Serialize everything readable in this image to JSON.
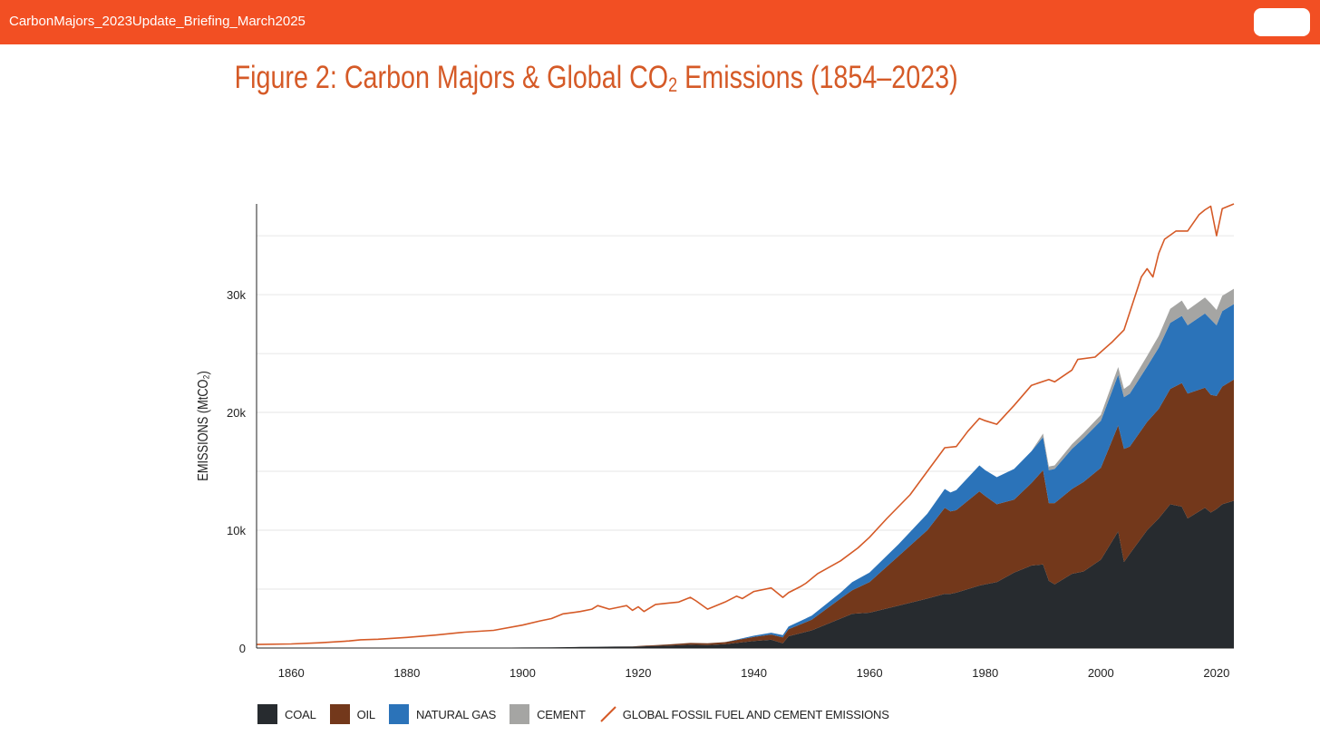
{
  "window": {
    "title": "CarbonMajors_2023Update_Briefing_March2025"
  },
  "colors": {
    "topbar": "#f24f23",
    "title": "#d55a27",
    "coal": "#272b2f",
    "oil": "#73381b",
    "gas": "#2b73b9",
    "cement": "#a5a5a3",
    "global_line": "#d55a27"
  },
  "figure": {
    "title_main": "Figure 2: Carbon Majors & Global CO",
    "title_sub": "2",
    "title_rest": " Emissions (1854–2023)"
  },
  "chart_data": {
    "type": "area",
    "stacked": true,
    "title": "Figure 2: Carbon Majors & Global CO₂ Emissions (1854–2023)",
    "xlabel": "",
    "ylabel": "EMISSIONS (MtCO₂)",
    "xlim": [
      1854,
      2023
    ],
    "ylim": [
      0,
      37700
    ],
    "yticks": [
      0,
      10000,
      20000,
      30000
    ],
    "ytick_labels": [
      "0",
      "10k",
      "20k",
      "30k"
    ],
    "xticks": [
      1860,
      1880,
      1900,
      1920,
      1940,
      1960,
      1980,
      2000,
      2020
    ],
    "xtick_labels": [
      "1860",
      "1880",
      "1900",
      "1920",
      "1940",
      "1960",
      "1980",
      "2000",
      "2020"
    ],
    "grid": true,
    "legend_position": "bottom-left",
    "x": [
      1854,
      1860,
      1870,
      1880,
      1890,
      1900,
      1905,
      1910,
      1913,
      1916,
      1919,
      1920,
      1925,
      1929,
      1932,
      1935,
      1940,
      1943,
      1945,
      1946,
      1950,
      1955,
      1957,
      1960,
      1965,
      1970,
      1973,
      1974,
      1975,
      1979,
      1980,
      1982,
      1985,
      1988,
      1990,
      1991,
      1992,
      1995,
      1997,
      2000,
      2003,
      2004,
      2005,
      2008,
      2010,
      2012,
      2014,
      2015,
      2018,
      2019,
      2020,
      2021,
      2023
    ],
    "series": [
      {
        "name": "COAL",
        "values": [
          0,
          0,
          0,
          0,
          0,
          50,
          60,
          90,
          110,
          120,
          120,
          130,
          200,
          280,
          250,
          320,
          600,
          700,
          400,
          1000,
          1500,
          2500,
          2900,
          3000,
          3600,
          4200,
          4600,
          4600,
          4700,
          5300,
          5400,
          5600,
          6400,
          7000,
          7100,
          5700,
          5400,
          6300,
          6500,
          7500,
          9900,
          7300,
          8000,
          10000,
          11000,
          12200,
          12000,
          11000,
          11900,
          11500,
          11800,
          12200,
          12500
        ]
      },
      {
        "name": "OIL",
        "values": [
          0,
          0,
          0,
          0,
          0,
          0,
          0,
          0,
          0,
          0,
          20,
          50,
          100,
          150,
          150,
          180,
          350,
          450,
          500,
          600,
          900,
          1700,
          2000,
          2600,
          4200,
          5800,
          7300,
          7000,
          7000,
          8000,
          7500,
          6600,
          6200,
          7000,
          8000,
          6600,
          6900,
          7200,
          7600,
          7800,
          9000,
          9600,
          9100,
          9200,
          9300,
          9800,
          10500,
          10600,
          10200,
          10000,
          9600,
          10000,
          10300
        ]
      },
      {
        "name": "NATURAL GAS",
        "values": [
          0,
          0,
          0,
          0,
          0,
          0,
          0,
          0,
          0,
          0,
          0,
          0,
          0,
          0,
          0,
          0,
          100,
          150,
          200,
          220,
          350,
          500,
          700,
          800,
          1000,
          1400,
          1600,
          1600,
          1700,
          2200,
          2200,
          2300,
          2600,
          2700,
          2800,
          2800,
          2900,
          3400,
          3700,
          4000,
          4300,
          4400,
          4500,
          4700,
          5200,
          5600,
          5700,
          5800,
          6300,
          6400,
          6000,
          6400,
          6400
        ]
      },
      {
        "name": "CEMENT",
        "values": [
          0,
          0,
          0,
          0,
          0,
          0,
          0,
          0,
          0,
          0,
          0,
          0,
          0,
          0,
          0,
          0,
          0,
          0,
          0,
          0,
          0,
          0,
          0,
          0,
          0,
          0,
          0,
          0,
          0,
          0,
          0,
          0,
          0,
          0,
          300,
          300,
          300,
          400,
          450,
          500,
          650,
          700,
          750,
          900,
          1000,
          1200,
          1300,
          1300,
          1350,
          1350,
          1300,
          1300,
          1300
        ]
      }
    ],
    "line": {
      "name": "GLOBAL FOSSIL FUEL AND CEMENT EMISSIONS",
      "x": [
        1854,
        1860,
        1865,
        1870,
        1872,
        1875,
        1880,
        1885,
        1890,
        1895,
        1900,
        1903,
        1905,
        1907,
        1910,
        1912,
        1913,
        1915,
        1917,
        1918,
        1919,
        1920,
        1921,
        1923,
        1925,
        1927,
        1929,
        1930,
        1932,
        1935,
        1937,
        1938,
        1940,
        1943,
        1945,
        1946,
        1948,
        1949,
        1951,
        1955,
        1958,
        1960,
        1963,
        1967,
        1970,
        1973,
        1975,
        1977,
        1979,
        1980,
        1982,
        1985,
        1988,
        1991,
        1992,
        1995,
        1996,
        1999,
        2002,
        2004,
        2007,
        2008,
        2009,
        2010,
        2011,
        2013,
        2015,
        2017,
        2018,
        2019,
        2020,
        2021,
        2023
      ],
      "values": [
        300,
        350,
        450,
        600,
        700,
        750,
        900,
        1100,
        1350,
        1500,
        1950,
        2300,
        2500,
        2900,
        3100,
        3300,
        3600,
        3300,
        3500,
        3600,
        3200,
        3500,
        3100,
        3700,
        3800,
        3900,
        4300,
        4000,
        3300,
        3900,
        4400,
        4200,
        4800,
        5100,
        4300,
        4700,
        5200,
        5500,
        6300,
        7400,
        8500,
        9400,
        11000,
        13000,
        15000,
        17000,
        17100,
        18400,
        19500,
        19300,
        19000,
        20600,
        22300,
        22800,
        22600,
        23600,
        24500,
        24700,
        26000,
        27000,
        31500,
        32200,
        31500,
        33500,
        34700,
        35400,
        35400,
        36800,
        37200,
        37500,
        35000,
        37300,
        37700
      ]
    }
  },
  "legend": {
    "items": [
      {
        "label": "COAL",
        "color": "#272b2f"
      },
      {
        "label": "OIL",
        "color": "#73381b"
      },
      {
        "label": "NATURAL GAS",
        "color": "#2b73b9"
      },
      {
        "label": "CEMENT",
        "color": "#a5a5a3"
      }
    ],
    "line_label": "GLOBAL FOSSIL FUEL AND CEMENT EMISSIONS"
  }
}
